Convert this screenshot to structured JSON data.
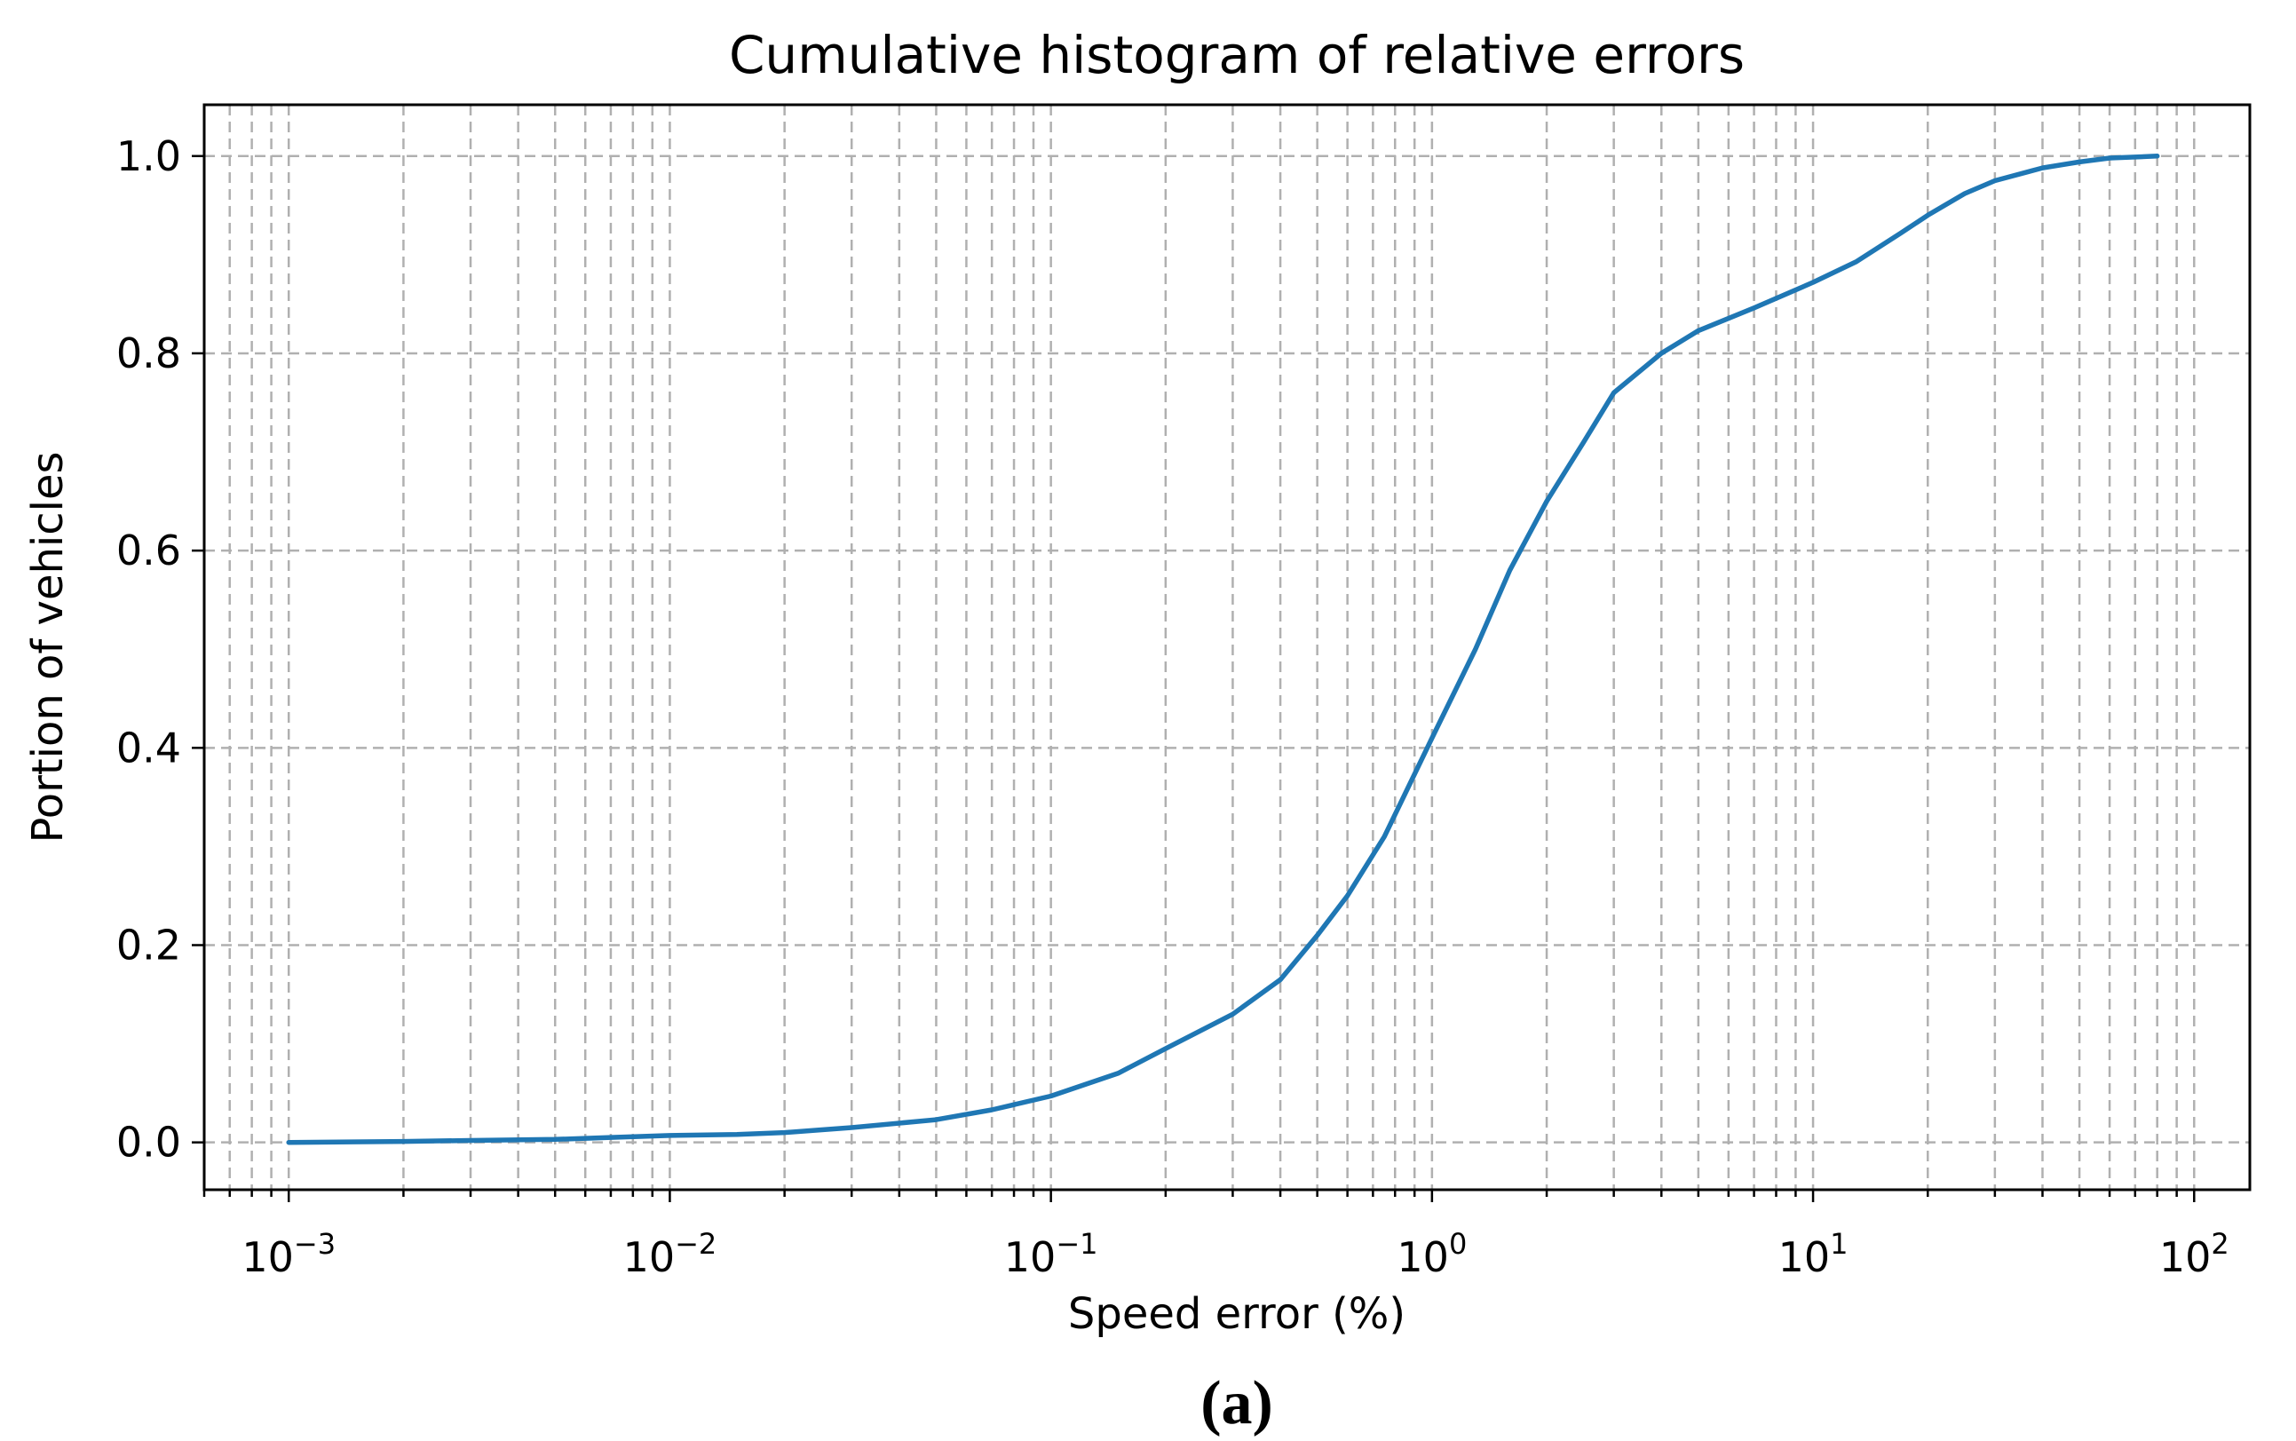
{
  "chart_data": {
    "type": "line",
    "title": "Cumulative histogram of relative errors",
    "xlabel": "Speed error (%)",
    "ylabel": "Portion of vehicles",
    "xscale": "log",
    "xlim": [
      0.0006,
      140
    ],
    "ylim": [
      -0.048,
      1.052
    ],
    "grid": true,
    "x_ticks": [
      {
        "base": "10",
        "exp": "−3",
        "value": 0.001
      },
      {
        "base": "10",
        "exp": "−2",
        "value": 0.01
      },
      {
        "base": "10",
        "exp": "−1",
        "value": 0.1
      },
      {
        "base": "10",
        "exp": "0",
        "value": 1
      },
      {
        "base": "10",
        "exp": "1",
        "value": 10
      },
      {
        "base": "10",
        "exp": "2",
        "value": 100
      }
    ],
    "y_ticks": [
      {
        "label": "0.0",
        "value": 0.0
      },
      {
        "label": "0.2",
        "value": 0.2
      },
      {
        "label": "0.4",
        "value": 0.4
      },
      {
        "label": "0.6",
        "value": 0.6
      },
      {
        "label": "0.8",
        "value": 0.8
      },
      {
        "label": "1.0",
        "value": 1.0
      }
    ],
    "series": [
      {
        "color": "#1f77b4",
        "points": [
          [
            0.001,
            0.0
          ],
          [
            0.002,
            0.001
          ],
          [
            0.003,
            0.002
          ],
          [
            0.005,
            0.003
          ],
          [
            0.007,
            0.005
          ],
          [
            0.01,
            0.007
          ],
          [
            0.015,
            0.008
          ],
          [
            0.02,
            0.01
          ],
          [
            0.03,
            0.015
          ],
          [
            0.05,
            0.023
          ],
          [
            0.07,
            0.033
          ],
          [
            0.1,
            0.047
          ],
          [
            0.15,
            0.07
          ],
          [
            0.2,
            0.095
          ],
          [
            0.3,
            0.13
          ],
          [
            0.4,
            0.165
          ],
          [
            0.5,
            0.21
          ],
          [
            0.6,
            0.25
          ],
          [
            0.75,
            0.31
          ],
          [
            1.0,
            0.41
          ],
          [
            1.3,
            0.5
          ],
          [
            1.6,
            0.58
          ],
          [
            2.0,
            0.65
          ],
          [
            2.5,
            0.71
          ],
          [
            3.0,
            0.76
          ],
          [
            4.0,
            0.8
          ],
          [
            5.0,
            0.823
          ],
          [
            7.0,
            0.846
          ],
          [
            10.0,
            0.872
          ],
          [
            13.0,
            0.893
          ],
          [
            17.0,
            0.922
          ],
          [
            20.0,
            0.94
          ],
          [
            25.0,
            0.962
          ],
          [
            30.0,
            0.975
          ],
          [
            40.0,
            0.988
          ],
          [
            50.0,
            0.994
          ],
          [
            60.0,
            0.998
          ],
          [
            80.0,
            1.0
          ]
        ]
      }
    ]
  },
  "caption": "(a)"
}
